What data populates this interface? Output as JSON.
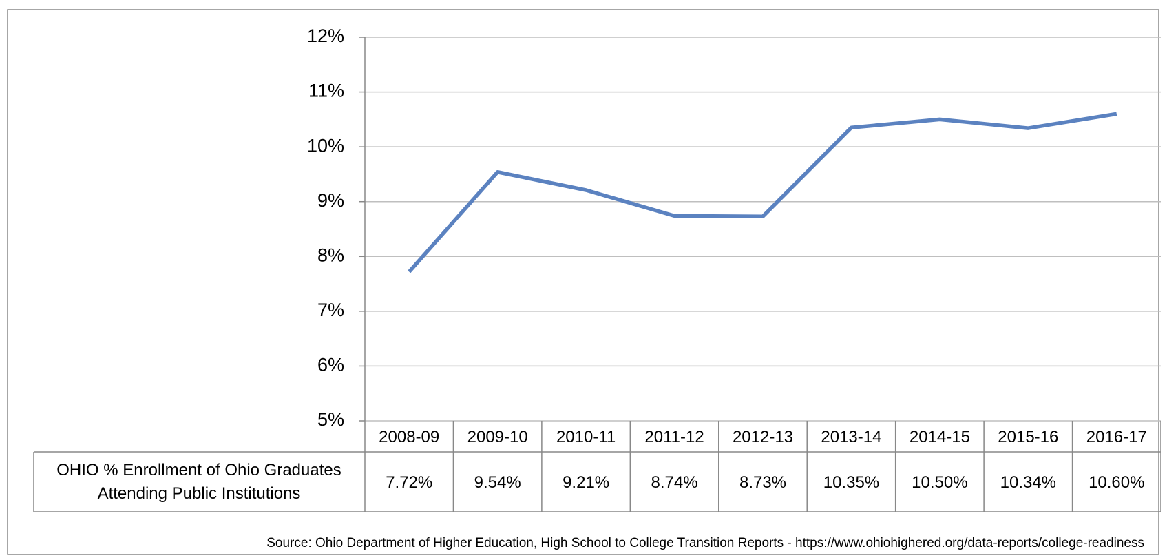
{
  "chart_data": {
    "type": "line",
    "categories": [
      "2008-09",
      "2009-10",
      "2010-11",
      "2011-12",
      "2012-13",
      "2013-14",
      "2014-15",
      "2015-16",
      "2016-17"
    ],
    "series": [
      {
        "name": "OHIO % Enrollment of Ohio Graduates Attending Public Institutions",
        "color": "#5b82c0",
        "values": [
          7.72,
          9.54,
          9.21,
          8.74,
          8.73,
          10.35,
          10.5,
          10.34,
          10.6
        ],
        "value_labels": [
          "7.72%",
          "9.54%",
          "9.21%",
          "8.74%",
          "8.73%",
          "10.35%",
          "10.50%",
          "10.34%",
          "10.60%"
        ]
      }
    ],
    "ylim": [
      5,
      12
    ],
    "yticks": [
      {
        "value": 5,
        "label": "5%"
      },
      {
        "value": 6,
        "label": "6%"
      },
      {
        "value": 7,
        "label": "7%"
      },
      {
        "value": 8,
        "label": "8%"
      },
      {
        "value": 9,
        "label": "9%"
      },
      {
        "value": 10,
        "label": "10%"
      },
      {
        "value": 11,
        "label": "11%"
      },
      {
        "value": 12,
        "label": "12%"
      }
    ],
    "grid": true,
    "source": "Source: Ohio Department of Higher Education, High School to College Transition Reports - https://www.ohiohighered.org/data-reports/college-readiness"
  }
}
